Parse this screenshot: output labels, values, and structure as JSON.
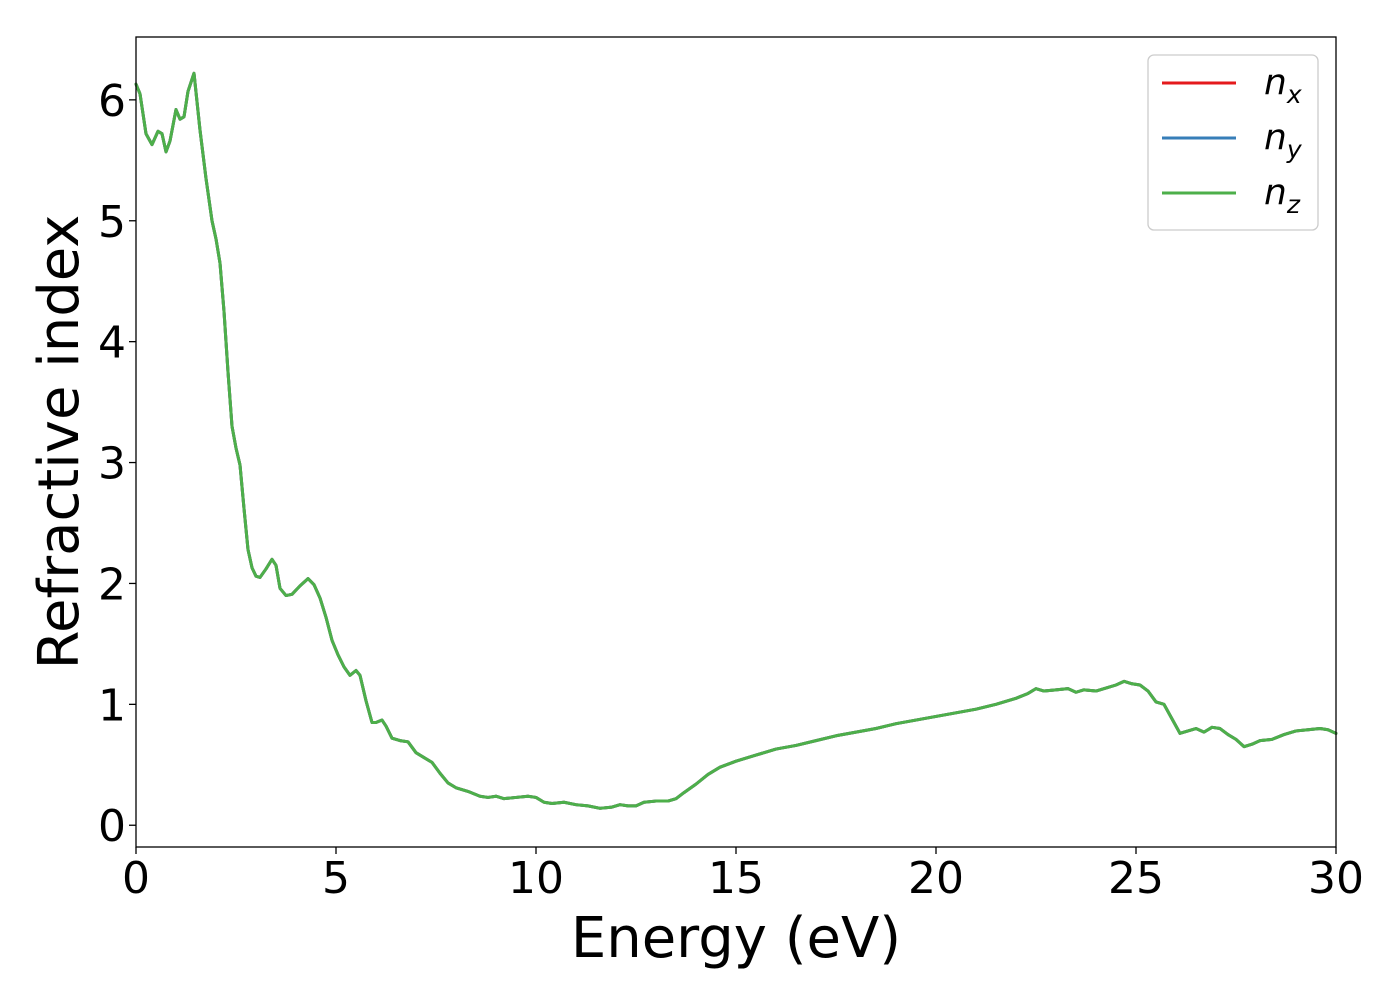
{
  "chart_data": {
    "type": "line",
    "title": "",
    "xlabel": "Energy (eV)",
    "ylabel": "Refractive index",
    "xlim": [
      0,
      30
    ],
    "ylim": [
      -0.18,
      6.52
    ],
    "xticks": [
      0,
      5,
      10,
      15,
      20,
      25,
      30
    ],
    "yticks": [
      0,
      1,
      2,
      3,
      4,
      5,
      6
    ],
    "grid": false,
    "legend_position": "top-right",
    "series": [
      {
        "name": "n_x",
        "label_base": "n",
        "label_sub": "x",
        "color": "#e41a1c"
      },
      {
        "name": "n_y",
        "label_base": "n",
        "label_sub": "y",
        "color": "#377eb8"
      },
      {
        "name": "n_z",
        "label_base": "n",
        "label_sub": "z",
        "color": "#4daf4a"
      }
    ],
    "x": [
      0,
      0.1,
      0.25,
      0.4,
      0.55,
      0.65,
      0.75,
      0.85,
      1.0,
      1.1,
      1.2,
      1.3,
      1.45,
      1.6,
      1.75,
      1.9,
      2.0,
      2.1,
      2.2,
      2.3,
      2.4,
      2.5,
      2.6,
      2.7,
      2.8,
      2.9,
      3.0,
      3.1,
      3.25,
      3.4,
      3.5,
      3.6,
      3.75,
      3.9,
      4.1,
      4.3,
      4.45,
      4.6,
      4.75,
      4.9,
      5.05,
      5.2,
      5.35,
      5.5,
      5.6,
      5.75,
      5.9,
      6.0,
      6.15,
      6.25,
      6.4,
      6.6,
      6.8,
      7.0,
      7.2,
      7.4,
      7.6,
      7.8,
      8.0,
      8.3,
      8.6,
      8.8,
      9.0,
      9.2,
      9.5,
      9.8,
      10.0,
      10.2,
      10.4,
      10.7,
      11.0,
      11.3,
      11.6,
      11.9,
      12.1,
      12.3,
      12.5,
      12.7,
      13.0,
      13.3,
      13.5,
      13.7,
      14.0,
      14.3,
      14.6,
      15.0,
      15.5,
      16.0,
      16.5,
      17.0,
      17.5,
      18.0,
      18.5,
      19.0,
      19.5,
      20.0,
      20.5,
      21.0,
      21.5,
      22.0,
      22.3,
      22.5,
      22.7,
      23.0,
      23.3,
      23.5,
      23.7,
      24.0,
      24.3,
      24.5,
      24.7,
      24.9,
      25.1,
      25.3,
      25.5,
      25.7,
      25.9,
      26.1,
      26.3,
      26.5,
      26.7,
      26.9,
      27.1,
      27.3,
      27.5,
      27.7,
      27.9,
      28.1,
      28.4,
      28.7,
      29.0,
      29.3,
      29.6,
      29.8,
      30.0
    ],
    "y": [
      6.13,
      6.05,
      5.72,
      5.63,
      5.74,
      5.72,
      5.57,
      5.66,
      5.92,
      5.84,
      5.86,
      6.07,
      6.22,
      5.75,
      5.35,
      5.0,
      4.85,
      4.65,
      4.25,
      3.75,
      3.3,
      3.12,
      2.98,
      2.62,
      2.28,
      2.13,
      2.06,
      2.05,
      2.12,
      2.2,
      2.15,
      1.96,
      1.9,
      1.91,
      1.98,
      2.04,
      1.99,
      1.88,
      1.72,
      1.53,
      1.41,
      1.31,
      1.24,
      1.28,
      1.24,
      1.03,
      0.85,
      0.85,
      0.87,
      0.82,
      0.72,
      0.7,
      0.69,
      0.6,
      0.56,
      0.52,
      0.43,
      0.35,
      0.31,
      0.28,
      0.24,
      0.23,
      0.24,
      0.22,
      0.23,
      0.24,
      0.23,
      0.19,
      0.18,
      0.19,
      0.17,
      0.16,
      0.14,
      0.15,
      0.17,
      0.16,
      0.16,
      0.19,
      0.2,
      0.2,
      0.22,
      0.27,
      0.34,
      0.42,
      0.48,
      0.53,
      0.58,
      0.63,
      0.66,
      0.7,
      0.74,
      0.77,
      0.8,
      0.84,
      0.87,
      0.9,
      0.93,
      0.96,
      1.0,
      1.05,
      1.09,
      1.13,
      1.11,
      1.12,
      1.13,
      1.1,
      1.12,
      1.11,
      1.14,
      1.16,
      1.19,
      1.17,
      1.16,
      1.11,
      1.02,
      1.0,
      0.88,
      0.76,
      0.78,
      0.8,
      0.77,
      0.81,
      0.8,
      0.75,
      0.71,
      0.65,
      0.67,
      0.7,
      0.71,
      0.75,
      0.78,
      0.79,
      0.8,
      0.79,
      0.76
    ]
  }
}
